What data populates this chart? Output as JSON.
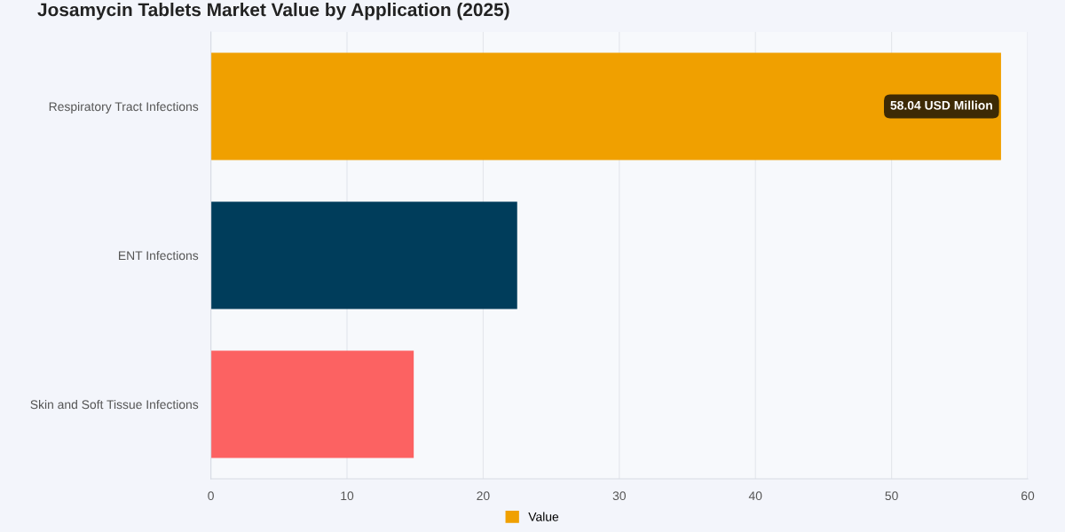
{
  "chart_data": {
    "type": "bar",
    "orientation": "horizontal",
    "title": "Josamycin Tablets Market Value by Application (2025)",
    "categories": [
      "Respiratory Tract Infections",
      "ENT Infections",
      "Skin and Soft Tissue Infections"
    ],
    "series": [
      {
        "name": "Value",
        "color": "#f0a000",
        "colors": [
          "#f0a000",
          "#003d5b",
          "#fc6262"
        ],
        "values": [
          58.04,
          22.5,
          14.9
        ],
        "value_labels": [
          "58.04 USD Million",
          null,
          null
        ]
      }
    ],
    "xlim": [
      0,
      60
    ],
    "xticks": [
      0,
      10,
      20,
      30,
      40,
      50,
      60
    ],
    "grid": "x",
    "legend": "bottom"
  }
}
